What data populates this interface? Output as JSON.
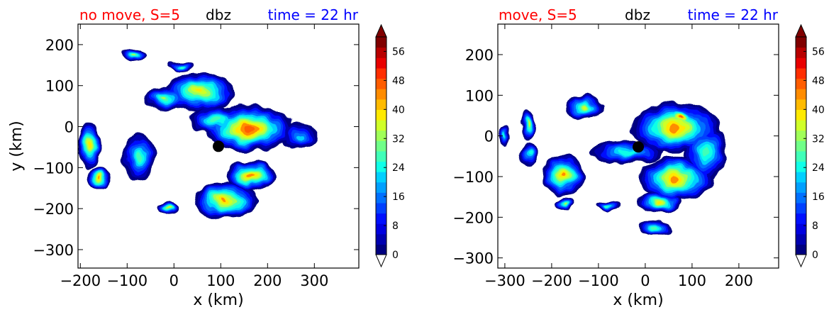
{
  "colors": {
    "left_title": "#ff0000",
    "center_title": "#000000",
    "right_title": "#0000ff",
    "marker": "#000000",
    "colormap": [
      "#000080",
      "#0000b0",
      "#0000e0",
      "#0010ff",
      "#0040ff",
      "#0070ff",
      "#00a0ff",
      "#00d0ff",
      "#10ffe8",
      "#40ffb8",
      "#70ff88",
      "#a0ff58",
      "#d0ff28",
      "#ffea00",
      "#ffbb00",
      "#ff8c00",
      "#ff5d00",
      "#ff2e00",
      "#e80000",
      "#b80000",
      "#800000"
    ]
  },
  "chart_data": [
    {
      "type": "contour",
      "variable": "dbz",
      "title_left": "no move, S=5",
      "title_center": "dbz",
      "title_right": "time = 22 hr",
      "xlabel": "x (km)",
      "ylabel": "y (km)",
      "xlim": [
        -205,
        395
      ],
      "ylim": [
        -345,
        250
      ],
      "xticks": [
        -200,
        -100,
        0,
        100,
        200,
        300
      ],
      "xtick_labels": [
        "−200",
        "−100",
        "0",
        "100",
        "200",
        "300"
      ],
      "yticks": [
        200,
        100,
        0,
        -100,
        -200,
        -300
      ],
      "ytick_labels": [
        "200",
        "100",
        "0",
        "−100",
        "−200",
        "−300"
      ],
      "colorbar": {
        "min": 0,
        "max": 60,
        "ticks": [
          0,
          8,
          16,
          24,
          32,
          40,
          48,
          56
        ],
        "tick_labels": [
          "0",
          "8",
          "16",
          "24",
          "32",
          "40",
          "48",
          "56"
        ],
        "extend": "both"
      },
      "marker": {
        "x": 95,
        "y": -48
      },
      "cells": [
        {
          "x": 160,
          "y": -5,
          "rx": 95,
          "ry": 55,
          "peak": 50
        },
        {
          "x": 270,
          "y": -25,
          "rx": 40,
          "ry": 32,
          "peak": 22
        },
        {
          "x": 55,
          "y": 85,
          "rx": 75,
          "ry": 48,
          "peak": 40
        },
        {
          "x": 90,
          "y": 15,
          "rx": 55,
          "ry": 35,
          "peak": 30
        },
        {
          "x": -20,
          "y": 70,
          "rx": 45,
          "ry": 30,
          "peak": 32
        },
        {
          "x": -85,
          "y": 175,
          "rx": 22,
          "ry": 15,
          "peak": 34
        },
        {
          "x": 15,
          "y": 148,
          "rx": 25,
          "ry": 12,
          "peak": 28
        },
        {
          "x": -75,
          "y": -75,
          "rx": 35,
          "ry": 55,
          "peak": 30
        },
        {
          "x": -180,
          "y": -45,
          "rx": 25,
          "ry": 55,
          "peak": 42
        },
        {
          "x": -160,
          "y": -125,
          "rx": 25,
          "ry": 28,
          "peak": 44
        },
        {
          "x": 165,
          "y": -120,
          "rx": 55,
          "ry": 35,
          "peak": 46
        },
        {
          "x": 110,
          "y": -180,
          "rx": 70,
          "ry": 45,
          "peak": 44
        },
        {
          "x": -10,
          "y": -200,
          "rx": 25,
          "ry": 18,
          "peak": 36
        }
      ]
    },
    {
      "type": "contour",
      "variable": "dbz",
      "title_left": "move, S=5",
      "title_center": "dbz",
      "title_right": "time = 22 hr",
      "xlabel": "x (km)",
      "ylabel": "",
      "xlim": [
        -315,
        285
      ],
      "ylim": [
        -325,
        275
      ],
      "xticks": [
        -300,
        -200,
        -100,
        0,
        100,
        200
      ],
      "xtick_labels": [
        "−300",
        "−200",
        "−100",
        "0",
        "100",
        "200"
      ],
      "yticks": [
        200,
        100,
        0,
        -100,
        -200,
        -300
      ],
      "ytick_labels": [
        "200",
        "100",
        "0",
        "−100",
        "−200",
        "−300"
      ],
      "colorbar": {
        "min": 0,
        "max": 60,
        "ticks": [
          0,
          8,
          16,
          24,
          32,
          40,
          48,
          56
        ],
        "tick_labels": [
          "0",
          "8",
          "16",
          "24",
          "32",
          "40",
          "48",
          "56"
        ],
        "extend": "both"
      },
      "marker": {
        "x": -15,
        "y": -27
      },
      "cells": [
        {
          "x": 65,
          "y": 20,
          "rx": 95,
          "ry": 60,
          "peak": 46
        },
        {
          "x": 75,
          "y": 45,
          "rx": 40,
          "ry": 25,
          "peak": 50
        },
        {
          "x": 130,
          "y": -40,
          "rx": 45,
          "ry": 70,
          "peak": 28
        },
        {
          "x": 65,
          "y": -105,
          "rx": 80,
          "ry": 55,
          "peak": 46
        },
        {
          "x": 30,
          "y": -165,
          "rx": 45,
          "ry": 25,
          "peak": 40
        },
        {
          "x": 20,
          "y": -225,
          "rx": 35,
          "ry": 18,
          "peak": 30
        },
        {
          "x": -130,
          "y": 70,
          "rx": 40,
          "ry": 30,
          "peak": 38
        },
        {
          "x": -40,
          "y": -40,
          "rx": 80,
          "ry": 28,
          "peak": 26
        },
        {
          "x": -175,
          "y": -95,
          "rx": 45,
          "ry": 50,
          "peak": 44
        },
        {
          "x": -250,
          "y": 25,
          "rx": 16,
          "ry": 35,
          "peak": 36
        },
        {
          "x": -250,
          "y": -45,
          "rx": 20,
          "ry": 30,
          "peak": 26
        },
        {
          "x": -170,
          "y": -165,
          "rx": 20,
          "ry": 15,
          "peak": 34
        },
        {
          "x": -80,
          "y": -170,
          "rx": 25,
          "ry": 12,
          "peak": 28
        },
        {
          "x": -300,
          "y": 0,
          "rx": 12,
          "ry": 25,
          "peak": 24
        }
      ]
    }
  ]
}
